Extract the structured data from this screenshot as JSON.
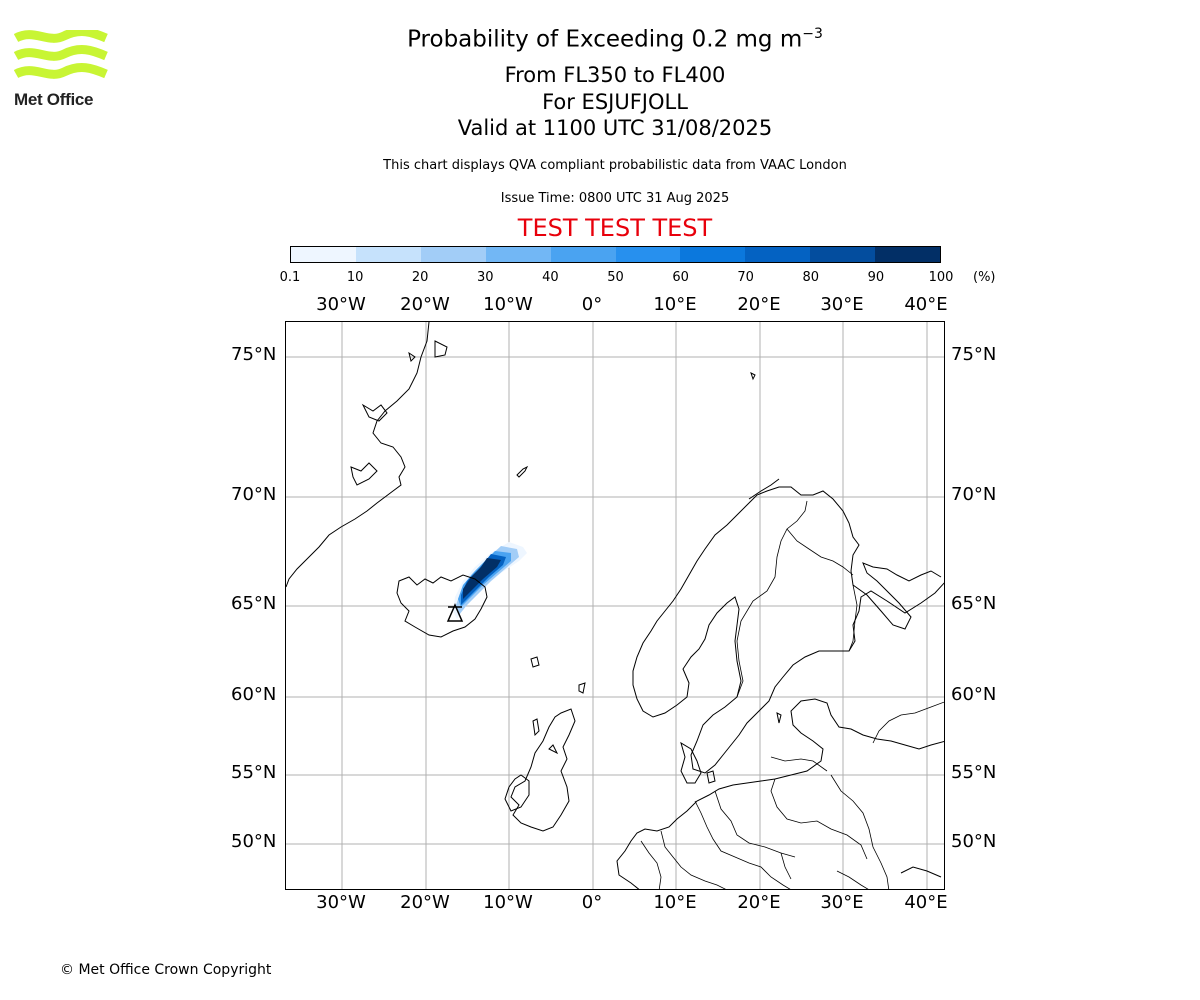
{
  "logo": {
    "text": "Met Office",
    "color": "#c8f534"
  },
  "header": {
    "title_main": "Probability of Exceeding 0.2 mg m",
    "title_sup": "−3",
    "level_range": "From FL350 to FL400",
    "volcano": "For ESJUFJOLL",
    "valid_time": "Valid at 1100 UTC 31/08/2025",
    "source_note": "This chart displays QVA compliant probabilistic data from VAAC London",
    "issue_time": "Issue Time: 0800 UTC 31 Aug 2025",
    "test_banner": "TEST TEST TEST",
    "test_color": "#e8000b"
  },
  "colorbar": {
    "ticks": [
      "0.1",
      "10",
      "20",
      "30",
      "40",
      "50",
      "60",
      "70",
      "80",
      "90",
      "100"
    ],
    "unit": "(%)",
    "colors": [
      "#eef6ff",
      "#c6e2fc",
      "#a2cdf7",
      "#72b7f5",
      "#4aa3f1",
      "#2790ee",
      "#0b78dd",
      "#0462c2",
      "#034d9e",
      "#022f66"
    ]
  },
  "map": {
    "longitude_labels": [
      "30°W",
      "20°W",
      "10°W",
      "0°",
      "10°E",
      "20°E",
      "30°E",
      "40°E"
    ],
    "latitude_labels": [
      "75°N",
      "70°N",
      "65°N",
      "60°N",
      "55°N",
      "50°N"
    ],
    "gridline_color": "#b0b0b0",
    "volcano_marker": "triangle-icon"
  },
  "footer": {
    "copyright": "© Met Office Crown Copyright"
  }
}
